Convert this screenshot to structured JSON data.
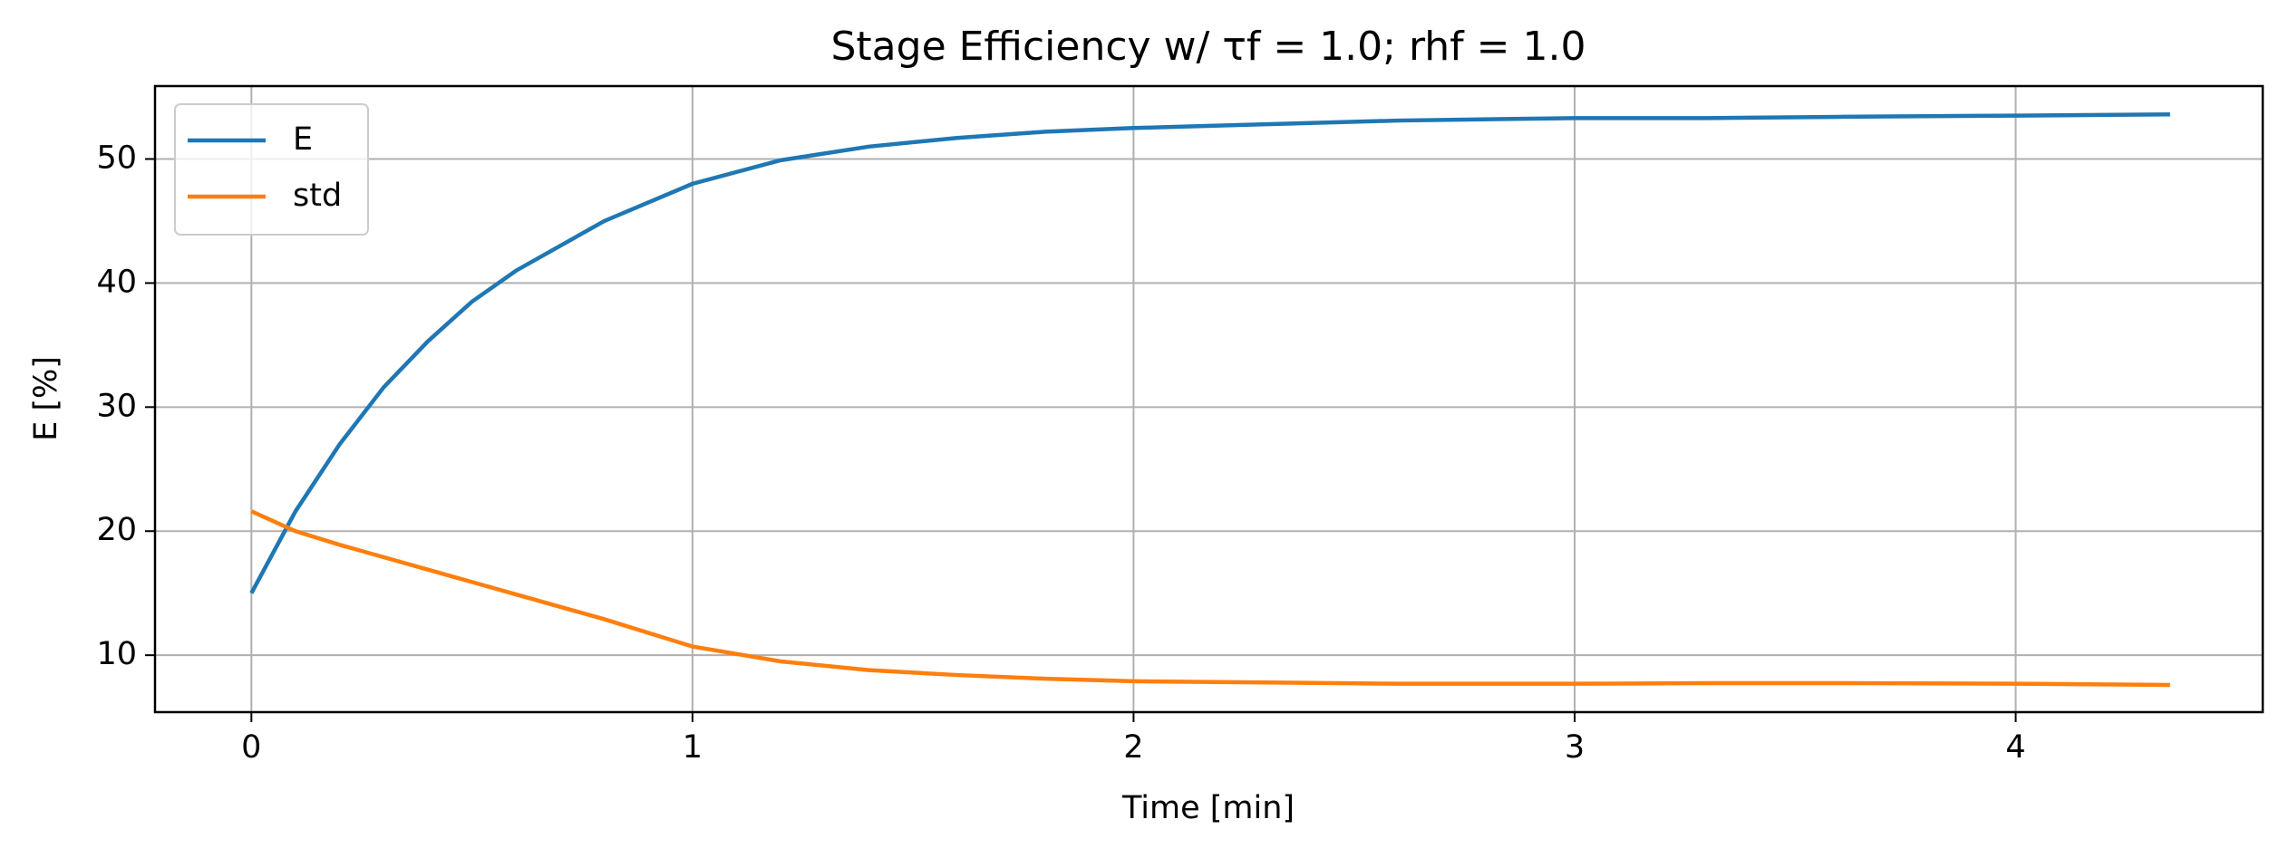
{
  "chart_data": {
    "type": "line",
    "title": "Stage Efficiency w/ τf = 1.0; rhf = 1.0",
    "xlabel": "Time [min]",
    "ylabel": "E [%]",
    "x": [
      0,
      0.1,
      0.2,
      0.3,
      0.4,
      0.5,
      0.6,
      0.8,
      1.0,
      1.2,
      1.4,
      1.6,
      1.8,
      2.0,
      2.3,
      2.6,
      3.0,
      3.3,
      3.6,
      4.0,
      4.35
    ],
    "series": [
      {
        "name": "E",
        "color": "#1f77b4",
        "values": [
          15,
          21.6,
          27,
          31.6,
          35.3,
          38.5,
          41.0,
          45.0,
          48.0,
          49.9,
          51.0,
          51.7,
          52.2,
          52.5,
          52.8,
          53.1,
          53.3,
          53.3,
          53.4,
          53.5,
          53.6
        ]
      },
      {
        "name": "std",
        "color": "#ff7f0e",
        "values": [
          21.6,
          20.0,
          18.9,
          17.9,
          16.9,
          15.9,
          14.9,
          12.9,
          10.7,
          9.5,
          8.8,
          8.4,
          8.1,
          7.9,
          7.8,
          7.7,
          7.7,
          7.75,
          7.75,
          7.7,
          7.6
        ]
      }
    ],
    "xlim": [
      -0.2185,
      4.56
    ],
    "ylim": [
      5.41,
      55.88
    ],
    "xticks": [
      0,
      1,
      2,
      3,
      4
    ],
    "yticks": [
      10,
      20,
      30,
      40,
      50
    ],
    "grid": true,
    "legend": "upper left"
  }
}
